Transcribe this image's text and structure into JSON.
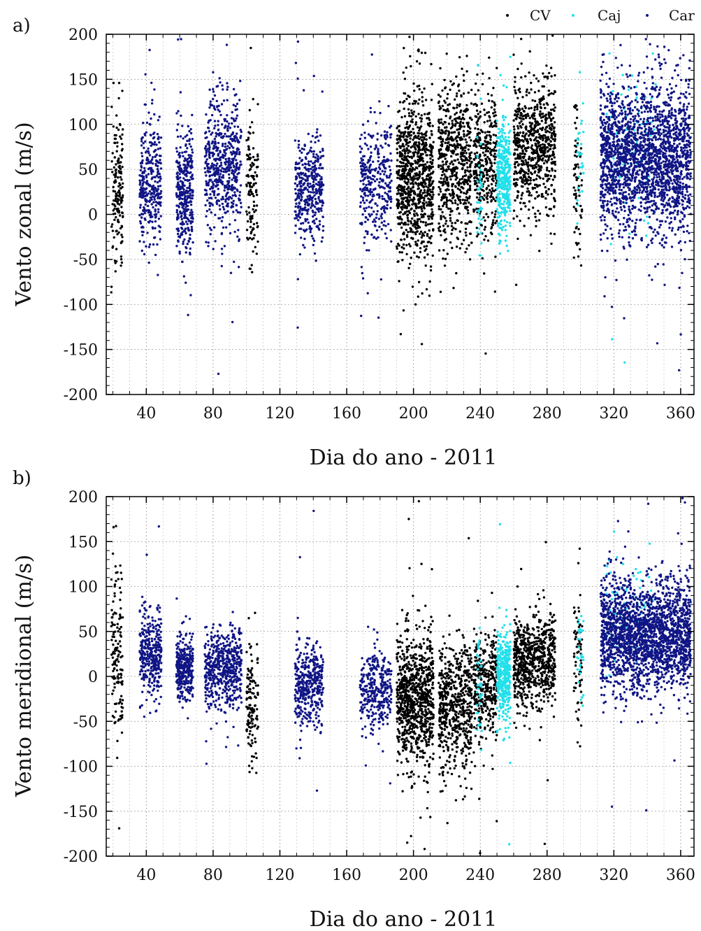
{
  "legend": {
    "position": "top-right",
    "entries": [
      {
        "label": "CV",
        "color": "#000000"
      },
      {
        "label": "Caj",
        "color": "#22e0ea"
      },
      {
        "label": "Car",
        "color": "#101585"
      }
    ]
  },
  "chart_data": [
    {
      "type": "scatter",
      "panel_label": "a)",
      "xlabel": "Dia do ano - 2011",
      "ylabel": "Vento zonal (m/s)",
      "xlim": [
        16,
        368
      ],
      "ylim": [
        -200,
        200
      ],
      "xticks": [
        40,
        80,
        120,
        160,
        200,
        240,
        280,
        320,
        360
      ],
      "yticks": [
        -200,
        -150,
        -100,
        -50,
        0,
        50,
        100,
        150,
        200
      ],
      "grid": true,
      "series": [
        {
          "name": "CV",
          "color": "#000000",
          "clusters": [
            {
              "x": [
                19,
                26
              ],
              "center": 30,
              "spread": 40,
              "n": 160
            },
            {
              "x": [
                100,
                107
              ],
              "center": 30,
              "spread": 35,
              "n": 120
            },
            {
              "x": [
                190,
                212
              ],
              "center": 40,
              "spread": 45,
              "n": 900
            },
            {
              "x": [
                215,
                235
              ],
              "center": 55,
              "spread": 45,
              "n": 600
            },
            {
              "x": [
                236,
                250
              ],
              "center": 60,
              "spread": 40,
              "n": 350
            },
            {
              "x": [
                260,
                285
              ],
              "center": 75,
              "spread": 38,
              "n": 700
            },
            {
              "x": [
                296,
                301
              ],
              "center": 40,
              "spread": 40,
              "n": 70
            }
          ]
        },
        {
          "name": "Caj",
          "color": "#22e0ea",
          "clusters": [
            {
              "x": [
                238,
                241
              ],
              "center": 30,
              "spread": 40,
              "n": 40
            },
            {
              "x": [
                250,
                258
              ],
              "center": 40,
              "spread": 30,
              "n": 380
            },
            {
              "x": [
                298,
                302
              ],
              "center": 60,
              "spread": 40,
              "n": 30
            },
            {
              "x": [
                315,
                345
              ],
              "center": 80,
              "spread": 45,
              "n": 90
            }
          ]
        },
        {
          "name": "Car",
          "color": "#101585",
          "clusters": [
            {
              "x": [
                36,
                49
              ],
              "center": 35,
              "spread": 35,
              "n": 340
            },
            {
              "x": [
                58,
                68
              ],
              "center": 25,
              "spread": 35,
              "n": 340
            },
            {
              "x": [
                75,
                97
              ],
              "center": 55,
              "spread": 35,
              "n": 560
            },
            {
              "x": [
                129,
                146
              ],
              "center": 30,
              "spread": 30,
              "n": 380
            },
            {
              "x": [
                168,
                187
              ],
              "center": 35,
              "spread": 35,
              "n": 320
            },
            {
              "x": [
                312,
                366
              ],
              "center": 65,
              "spread": 40,
              "n": 2200
            }
          ]
        }
      ]
    },
    {
      "type": "scatter",
      "panel_label": "b)",
      "xlabel": "Dia do ano - 2011",
      "ylabel": "Vento meridional (m/s)",
      "xlim": [
        16,
        368
      ],
      "ylim": [
        -200,
        200
      ],
      "xticks": [
        40,
        80,
        120,
        160,
        200,
        240,
        280,
        320,
        360
      ],
      "yticks": [
        -200,
        -150,
        -100,
        -50,
        0,
        50,
        100,
        150,
        200
      ],
      "grid": true,
      "series": [
        {
          "name": "CV",
          "color": "#000000",
          "clusters": [
            {
              "x": [
                19,
                26
              ],
              "center": 30,
              "spread": 50,
              "n": 140
            },
            {
              "x": [
                100,
                107
              ],
              "center": -30,
              "spread": 35,
              "n": 130
            },
            {
              "x": [
                190,
                212
              ],
              "center": -25,
              "spread": 35,
              "n": 900
            },
            {
              "x": [
                215,
                235
              ],
              "center": -35,
              "spread": 35,
              "n": 600
            },
            {
              "x": [
                236,
                250
              ],
              "center": -10,
              "spread": 30,
              "n": 350
            },
            {
              "x": [
                260,
                285
              ],
              "center": 15,
              "spread": 25,
              "n": 700
            },
            {
              "x": [
                296,
                301
              ],
              "center": 20,
              "spread": 40,
              "n": 70
            }
          ]
        },
        {
          "name": "Caj",
          "color": "#22e0ea",
          "clusters": [
            {
              "x": [
                238,
                241
              ],
              "center": 0,
              "spread": 30,
              "n": 40
            },
            {
              "x": [
                250,
                258
              ],
              "center": 0,
              "spread": 25,
              "n": 380
            },
            {
              "x": [
                298,
                302
              ],
              "center": 20,
              "spread": 30,
              "n": 30
            },
            {
              "x": [
                315,
                345
              ],
              "center": 70,
              "spread": 40,
              "n": 90
            }
          ]
        },
        {
          "name": "Car",
          "color": "#101585",
          "clusters": [
            {
              "x": [
                36,
                49
              ],
              "center": 25,
              "spread": 25,
              "n": 340
            },
            {
              "x": [
                58,
                68
              ],
              "center": 10,
              "spread": 18,
              "n": 340
            },
            {
              "x": [
                75,
                97
              ],
              "center": 10,
              "spread": 22,
              "n": 560
            },
            {
              "x": [
                129,
                146
              ],
              "center": -10,
              "spread": 22,
              "n": 380
            },
            {
              "x": [
                168,
                187
              ],
              "center": -15,
              "spread": 22,
              "n": 320
            },
            {
              "x": [
                312,
                366
              ],
              "center": 45,
              "spread": 30,
              "n": 2200
            }
          ]
        }
      ]
    }
  ]
}
